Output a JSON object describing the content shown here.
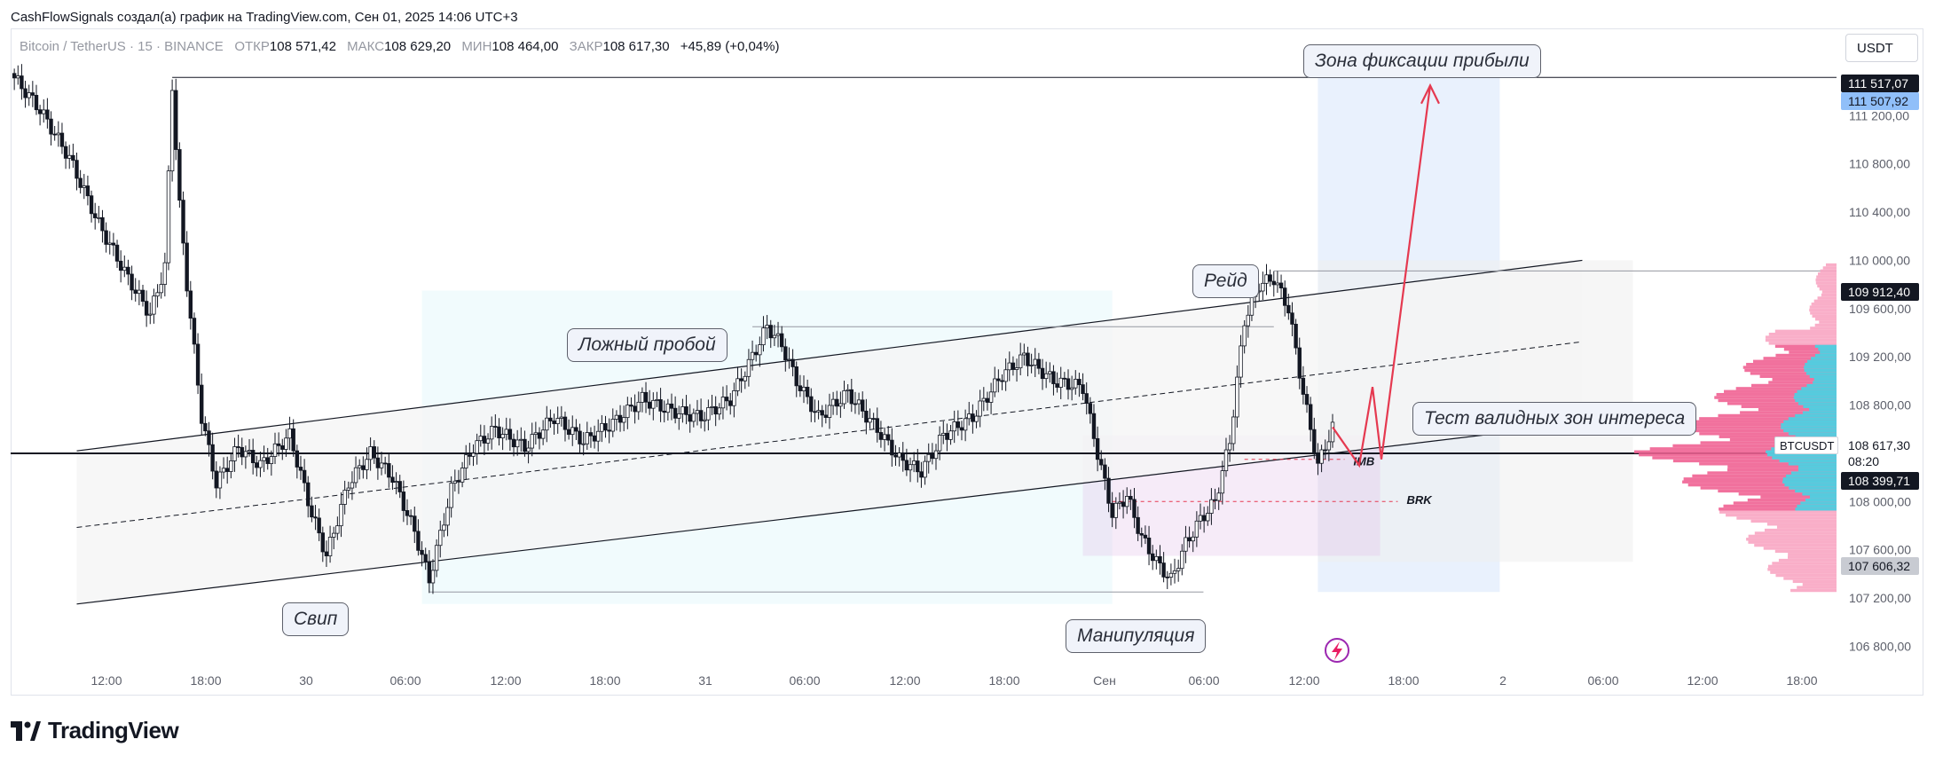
{
  "header": {
    "attribution": "CashFlowSignals создал(а) график на TradingView.com, Сен 01, 2025 14:06 UTC+3"
  },
  "legend": {
    "symbol": "Bitcoin / TetherUS · 15 · BINANCE",
    "open_label": "ОТКР",
    "open": "108 571,42",
    "high_label": "МАКС",
    "high": "108 629,20",
    "low_label": "МИН",
    "low": "108 464,00",
    "close_label": "ЗАКР",
    "close": "108 617,30",
    "change": "+45,89 (+0,04%)"
  },
  "currency": "USDT",
  "annotations": {
    "profit_zone": "Зона фиксации прибыли",
    "raid": "Рейд",
    "false_breakout": "Ложный пробой",
    "zone_test": "Тест валидных зон интереса",
    "sweep": "Свип",
    "manipulation": "Манипуляция",
    "imb": "IMB",
    "brk": "BRK"
  },
  "price_tags": {
    "top_level": "111 517,07",
    "top_level2": "111 507,92",
    "raid_high": "109 912,40",
    "symbol": "BTCUSDT",
    "last_price": "108 617,30",
    "countdown": "08:20",
    "support": "108 399,71",
    "low_level": "107 606,32"
  },
  "branding": {
    "name": "TradingView"
  },
  "colors": {
    "channel_fill": "#f5f5f5",
    "manip_zone": "#e0f7fa",
    "target_zone": "#dbe8fb",
    "volume_pink": "#f06292",
    "volume_cyan": "#4dd0e1",
    "arrow_red": "#e53950",
    "imb_zone": "#e1bee7"
  },
  "chart_data": {
    "type": "candlestick",
    "symbol": "Bitcoin / TetherUS",
    "timeframe": "15",
    "exchange": "BINANCE",
    "ylim": [
      106700,
      111850
    ],
    "y_ticks": [
      106800,
      107200,
      107600,
      108000,
      108400,
      108800,
      109200,
      109600,
      110000,
      110400,
      110800,
      111200
    ],
    "y_tick_labels": [
      "106 800,00",
      "107 200,00",
      "107 600,00",
      "108 000,00",
      "108 400,00",
      "108 800,00",
      "109 200,00",
      "109 600,00",
      "110 000,00",
      "110 400,00",
      "110 800,00",
      "111 200,00"
    ],
    "x_ticks": [
      "12:00",
      "18:00",
      "30",
      "06:00",
      "12:00",
      "18:00",
      "31",
      "06:00",
      "12:00",
      "18:00",
      "Сен",
      "06:00",
      "12:00",
      "18:00",
      "2",
      "06:00",
      "12:00",
      "18:00"
    ],
    "price_path": [
      [
        0,
        111550
      ],
      [
        4,
        111250
      ],
      [
        8,
        110850
      ],
      [
        12,
        110300
      ],
      [
        16,
        109850
      ],
      [
        19,
        109550
      ],
      [
        21,
        109950
      ],
      [
        22,
        111450
      ],
      [
        23,
        110450
      ],
      [
        24,
        109800
      ],
      [
        26,
        108700
      ],
      [
        28,
        108150
      ],
      [
        31,
        108450
      ],
      [
        34,
        108300
      ],
      [
        38,
        108550
      ],
      [
        41,
        107900
      ],
      [
        43,
        107550
      ],
      [
        46,
        108150
      ],
      [
        49,
        108400
      ],
      [
        52,
        108200
      ],
      [
        55,
        107750
      ],
      [
        57,
        107350
      ],
      [
        60,
        108100
      ],
      [
        63,
        108450
      ],
      [
        66,
        108600
      ],
      [
        70,
        108450
      ],
      [
        74,
        108700
      ],
      [
        78,
        108500
      ],
      [
        82,
        108650
      ],
      [
        86,
        108850
      ],
      [
        90,
        108750
      ],
      [
        94,
        108700
      ],
      [
        98,
        108850
      ],
      [
        101,
        109200
      ],
      [
        103,
        109450
      ],
      [
        105,
        109300
      ],
      [
        107,
        109000
      ],
      [
        110,
        108700
      ],
      [
        114,
        108900
      ],
      [
        118,
        108600
      ],
      [
        121,
        108350
      ],
      [
        124,
        108250
      ],
      [
        127,
        108550
      ],
      [
        131,
        108700
      ],
      [
        135,
        109050
      ],
      [
        138,
        109200
      ],
      [
        142,
        109000
      ],
      [
        146,
        108950
      ],
      [
        148,
        108400
      ],
      [
        150,
        107900
      ],
      [
        152,
        108050
      ],
      [
        154,
        107700
      ],
      [
        156,
        107500
      ],
      [
        158,
        107350
      ],
      [
        160,
        107650
      ],
      [
        162,
        107850
      ],
      [
        164,
        108000
      ],
      [
        166,
        108500
      ],
      [
        168,
        109500
      ],
      [
        170,
        109800
      ],
      [
        172,
        109850
      ],
      [
        174,
        109600
      ],
      [
        176,
        108900
      ],
      [
        178,
        108300
      ],
      [
        180,
        108617
      ]
    ],
    "levels": {
      "resistance_top": 111517.07,
      "raid_high": 109912.4,
      "last": 108617.3,
      "support": 108399.71,
      "low_level": 107606.32
    }
  }
}
